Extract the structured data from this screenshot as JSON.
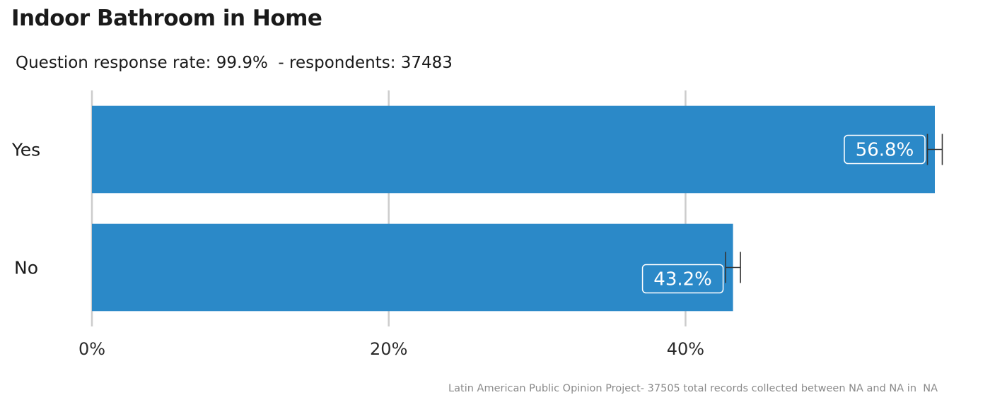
{
  "chart_data": {
    "type": "bar",
    "orientation": "horizontal",
    "title": "Indoor Bathroom in Home",
    "subtitle": "Question response rate: 99.9%  - respondents: 37483",
    "caption": "Latin American Public Opinion Project- 37505 total records collected between NA and NA in  NA",
    "categories": [
      "Yes",
      "No"
    ],
    "values": [
      56.8,
      43.2
    ],
    "data_labels": [
      "56.8%",
      "43.2%"
    ],
    "error_bars": [
      [
        56.3,
        57.3
      ],
      [
        42.7,
        43.7
      ]
    ],
    "xlim": [
      0,
      56.8
    ],
    "x_ticks": [
      0,
      20,
      40
    ],
    "x_tick_labels": [
      "0%",
      "20%",
      "40%"
    ],
    "xlabel": "",
    "ylabel": "",
    "grid": "vertical major",
    "legend": "none",
    "colors": {
      "bar": "#2b89c8",
      "grid": "#cccccc",
      "error_bar": "#333333"
    }
  }
}
